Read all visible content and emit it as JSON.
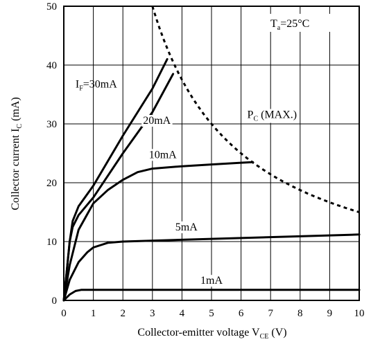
{
  "chart_data": {
    "type": "line",
    "xlabel": {
      "main": "Collector-emitter voltage V",
      "sub": "CE",
      "unit": " (V)"
    },
    "ylabel": {
      "main": "Collector current I",
      "sub": "C",
      "unit": " (mA)"
    },
    "xlim": [
      0,
      10
    ],
    "ylim": [
      0,
      50
    ],
    "xticks": [
      "0",
      "1",
      "2",
      "3",
      "4",
      "5",
      "6",
      "7",
      "8",
      "9",
      "10"
    ],
    "yticks": [
      "0",
      "10",
      "20",
      "30",
      "40",
      "50"
    ],
    "grid": true,
    "ambient": {
      "main": "T",
      "sub": "a",
      "rest": "=25°C"
    },
    "series": [
      {
        "name": "I_F=30mA",
        "label": {
          "main": "I",
          "sub": "F",
          "rest": "=30mA"
        },
        "x": [
          0,
          0.1,
          0.2,
          0.3,
          0.5,
          1.0,
          2.0,
          3.0,
          3.5
        ],
        "y": [
          0,
          5,
          10,
          13.5,
          16,
          19.5,
          28,
          36,
          41
        ]
      },
      {
        "name": "20mA",
        "label": {
          "main": "20mA",
          "sub": "",
          "rest": ""
        },
        "x": [
          0,
          0.1,
          0.2,
          0.3,
          0.5,
          1.0,
          2.0,
          3.0,
          3.7
        ],
        "y": [
          0,
          5,
          10,
          12.5,
          14.5,
          17.5,
          25,
          32,
          38.5
        ]
      },
      {
        "name": "10mA",
        "label": {
          "main": "10mA",
          "sub": "",
          "rest": ""
        },
        "x": [
          0,
          0.2,
          0.5,
          1.0,
          1.5,
          2.0,
          2.5,
          3.0,
          4.0,
          5.0,
          6.0,
          6.4
        ],
        "y": [
          0,
          6,
          12,
          16.5,
          18.8,
          20.5,
          21.8,
          22.4,
          22.8,
          23.1,
          23.4,
          23.5
        ]
      },
      {
        "name": "5mA",
        "label": {
          "main": "5mA",
          "sub": "",
          "rest": ""
        },
        "x": [
          0,
          0.2,
          0.5,
          0.8,
          1.0,
          1.5,
          2.0,
          4.0,
          6.0,
          8.0,
          10.0
        ],
        "y": [
          0,
          3.5,
          6.5,
          8.2,
          9.0,
          9.8,
          10.0,
          10.3,
          10.6,
          10.9,
          11.2
        ]
      },
      {
        "name": "1mA",
        "label": {
          "main": "1mA",
          "sub": "",
          "rest": ""
        },
        "x": [
          0,
          0.2,
          0.4,
          0.6,
          1.0,
          4.0,
          10.0
        ],
        "y": [
          0,
          1.0,
          1.6,
          1.8,
          1.8,
          1.8,
          1.8
        ]
      }
    ],
    "max_curve": {
      "name": "P_C (MAX.)",
      "label": {
        "main": "P",
        "sub": "C",
        "rest": " (MAX.)"
      },
      "power_mW": 150,
      "style": "dashed"
    }
  }
}
